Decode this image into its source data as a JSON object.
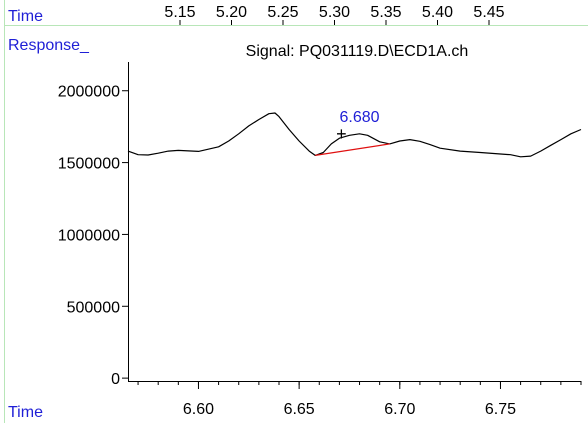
{
  "top_ruler": {
    "time_label": "Time",
    "ticks": [
      "5.15",
      "5.20",
      "5.25",
      "5.30",
      "5.35",
      "5.40",
      "5.45"
    ]
  },
  "response_label": "Response_",
  "chart_data": {
    "type": "line",
    "title": "Signal: PQ031119.D\\ECD1A.ch",
    "xlabel": "Time",
    "ylabel": "",
    "xlim": [
      6.565,
      6.79
    ],
    "ylim": [
      -20000,
      2200000
    ],
    "x_ticks": [
      6.6,
      6.65,
      6.7,
      6.75
    ],
    "x_tick_labels": [
      "6.60",
      "6.65",
      "6.70",
      "6.75"
    ],
    "y_ticks": [
      0,
      500000,
      1000000,
      1500000,
      2000000
    ],
    "y_tick_labels": [
      "0",
      "500000",
      "1000000",
      "1500000",
      "2000000"
    ],
    "series": [
      {
        "color": "#000000",
        "x": [
          6.565,
          6.57,
          6.575,
          6.58,
          6.585,
          6.59,
          6.6,
          6.61,
          6.615,
          6.62,
          6.625,
          6.63,
          6.635,
          6.638,
          6.64,
          6.645,
          6.65,
          6.655,
          6.658,
          6.662,
          6.666,
          6.67,
          6.675,
          6.68,
          6.684,
          6.69,
          6.695,
          6.7,
          6.705,
          6.71,
          6.715,
          6.72,
          6.73,
          6.74,
          6.75,
          6.755,
          6.76,
          6.765,
          6.77,
          6.775,
          6.78,
          6.785,
          6.79
        ],
        "y": [
          1580000,
          1555000,
          1553000,
          1565000,
          1580000,
          1585000,
          1578000,
          1610000,
          1650000,
          1700000,
          1755000,
          1800000,
          1840000,
          1845000,
          1820000,
          1730000,
          1650000,
          1580000,
          1550000,
          1570000,
          1630000,
          1670000,
          1690000,
          1700000,
          1690000,
          1645000,
          1630000,
          1650000,
          1660000,
          1648000,
          1625000,
          1600000,
          1580000,
          1570000,
          1560000,
          1555000,
          1540000,
          1545000,
          1580000,
          1620000,
          1660000,
          1700000,
          1730000
        ]
      }
    ],
    "annotations": [
      {
        "text": "6.680",
        "x": 6.68,
        "y": 1700000,
        "color": "#1f1fd6"
      },
      {
        "text": "+",
        "x": 6.671,
        "y": 1670000,
        "color": "#000000"
      }
    ],
    "baseline": {
      "x": [
        6.658,
        6.695
      ],
      "y": [
        1550000,
        1630000
      ],
      "color": "#e01010"
    }
  }
}
